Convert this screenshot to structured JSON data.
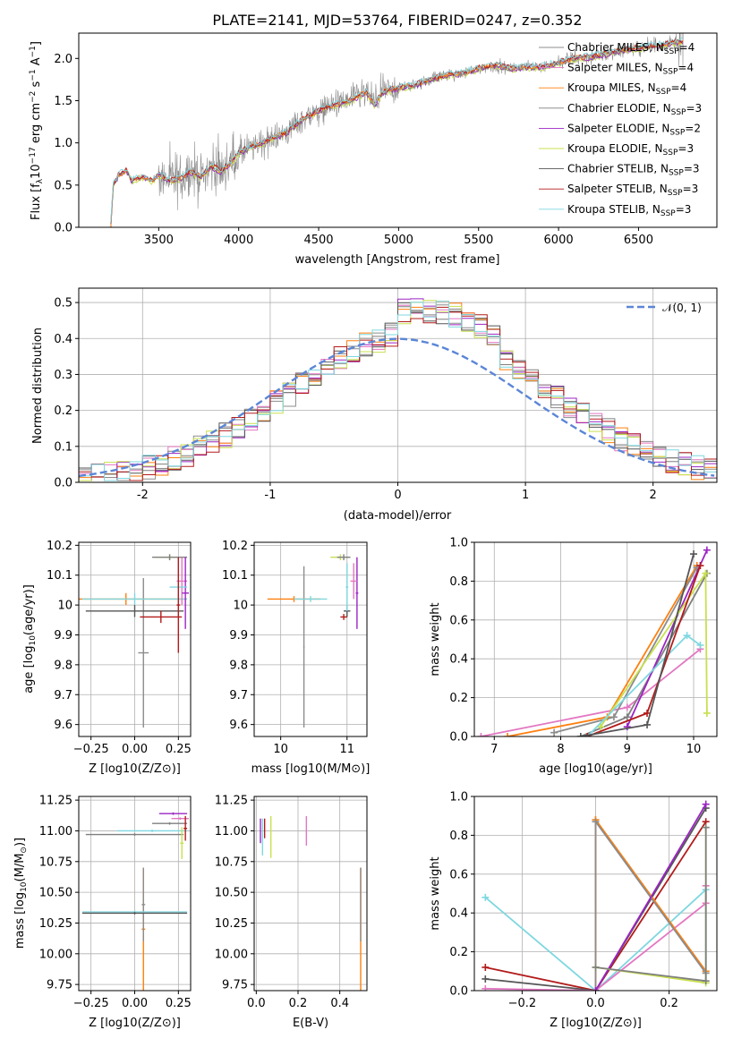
{
  "colors": {
    "chabrier_miles": "#8c8c8c",
    "salpeter_miles": "#e377c2",
    "kroupa_miles": "#ff7f0e",
    "chabrier_elodie": "#7f7f7f",
    "salpeter_elodie": "#9b24c4",
    "kroupa_elodie": "#c7e04f",
    "chabrier_stelib": "#555555",
    "salpeter_stelib": "#b31b1b",
    "kroupa_stelib": "#7fd7e0",
    "gauss": "#5b86d6"
  },
  "chart_data": [
    {
      "name": "spectrum",
      "type": "line",
      "title": "PLATE=2141, MJD=53764, FIBERID=0247, z=0.352",
      "xlabel": "wavelength [Angstrom, rest frame]",
      "ylabel": "Flux [f_λ10^-17 erg cm^-2 s^-1 A^-1]",
      "xlim": [
        3000,
        6990
      ],
      "ylim": [
        0,
        2.3
      ],
      "xticks": [
        3500,
        4000,
        4500,
        5000,
        5500,
        6000,
        6500
      ],
      "yticks": [
        0.0,
        0.5,
        1.0,
        1.5,
        2.0
      ],
      "legend_position": "top-right",
      "legend": [
        {
          "key": "chabrier_miles",
          "label": "Chabrier MILES, N_SSP=4"
        },
        {
          "key": "salpeter_miles",
          "label": "Salpeter MILES, N_SSP=4"
        },
        {
          "key": "kroupa_miles",
          "label": "Kroupa MILES, N_SSP=4"
        },
        {
          "key": "chabrier_elodie",
          "label": "Chabrier ELODIE, N_SSP=3"
        },
        {
          "key": "salpeter_elodie",
          "label": "Salpeter ELODIE, N_SSP=2"
        },
        {
          "key": "kroupa_elodie",
          "label": "Kroupa ELODIE, N_SSP=3"
        },
        {
          "key": "chabrier_stelib",
          "label": "Chabrier STELIB, N_SSP=3"
        },
        {
          "key": "salpeter_stelib",
          "label": "Salpeter STELIB, N_SSP=3"
        },
        {
          "key": "kroupa_stelib",
          "label": "Kroupa STELIB, N_SSP=3"
        }
      ],
      "model_envelope": {
        "x": [
          3200,
          3215,
          3250,
          3300,
          3330,
          3400,
          3460,
          3500,
          3580,
          3640,
          3700,
          3760,
          3830,
          3890,
          3960,
          4000,
          4080,
          4150,
          4200,
          4300,
          4400,
          4500,
          4600,
          4700,
          4800,
          4850,
          4900,
          5000,
          5100,
          5200,
          5300,
          5400,
          5500,
          5600,
          5700,
          5800,
          5900,
          6000,
          6100,
          6200,
          6300,
          6400,
          6500,
          6600,
          6700,
          6780
        ],
        "y": [
          0.0,
          0.5,
          0.62,
          0.67,
          0.55,
          0.6,
          0.55,
          0.62,
          0.55,
          0.58,
          0.66,
          0.6,
          0.72,
          0.66,
          0.78,
          0.88,
          0.95,
          1.0,
          1.05,
          1.12,
          1.28,
          1.38,
          1.45,
          1.5,
          1.6,
          1.45,
          1.6,
          1.65,
          1.68,
          1.75,
          1.8,
          1.82,
          1.88,
          1.92,
          1.88,
          1.9,
          1.9,
          1.95,
          2.0,
          2.02,
          2.05,
          2.1,
          2.12,
          2.15,
          2.18,
          2.2
        ]
      }
    },
    {
      "name": "residual-histogram",
      "type": "histogram",
      "xlabel": "(data-model)/error",
      "ylabel": "Normed distribution",
      "xlim": [
        -2.5,
        2.5
      ],
      "ylim": [
        0,
        0.54
      ],
      "xticks": [
        -2,
        -1,
        0,
        1,
        2
      ],
      "yticks": [
        0.0,
        0.1,
        0.2,
        0.3,
        0.4,
        0.5
      ],
      "legend_position": "top-right",
      "legend": [
        {
          "key": "gauss",
          "label": "𝒩(0, 1)"
        }
      ],
      "bin_width": 0.1
    },
    {
      "name": "age-vs-metallicity",
      "type": "errorbar",
      "xlabel": "Z [log10(Z/Z⊙)]",
      "ylabel": "age [log10(age/yr)]",
      "xlim": [
        -0.32,
        0.32
      ],
      "ylim": [
        9.56,
        10.21
      ],
      "xticks": [
        -0.25,
        0.0,
        0.25
      ],
      "xticklabels": [
        "−0.25",
        "0.00",
        "0.25"
      ],
      "yticks": [
        9.6,
        9.7,
        9.8,
        9.9,
        10.0,
        10.1,
        10.2
      ],
      "points": [
        {
          "key": "chabrier_miles",
          "x": 0.05,
          "y": 9.84,
          "xerr": 0.03,
          "yerr": 0.25
        },
        {
          "key": "kroupa_miles",
          "x": -0.05,
          "y": 10.02,
          "xerr": 0.35,
          "yerr": 0.02
        },
        {
          "key": "kroupa_stelib",
          "x": 0.0,
          "y": 10.02,
          "xerr": 0.3,
          "yerr": 0.02
        },
        {
          "key": "chabrier_stelib",
          "x": 0.0,
          "y": 9.98,
          "xerr": 0.28,
          "yerr": 0.02
        },
        {
          "key": "salpeter_stelib",
          "x": 0.15,
          "y": 9.96,
          "xerr": 0.12,
          "yerr": 0.02
        },
        {
          "key": "kroupa_elodie",
          "x": 0.2,
          "y": 10.16,
          "xerr": 0.08,
          "yerr": 0.01
        },
        {
          "key": "chabrier_elodie",
          "x": 0.2,
          "y": 10.16,
          "xerr": 0.1,
          "yerr": 0.01
        },
        {
          "key": "salpeter_miles",
          "x": 0.27,
          "y": 10.08,
          "xerr": 0.03,
          "yerr": 0.08
        },
        {
          "key": "salpeter_elodie",
          "x": 0.29,
          "y": 10.04,
          "xerr": 0.02,
          "yerr": 0.12
        },
        {
          "key": "kroupa_stelib",
          "x": 0.25,
          "y": 10.06,
          "xerr": 0.05,
          "yerr": 0.1
        },
        {
          "key": "salpeter_stelib",
          "x": 0.25,
          "y": 10.0,
          "xerr": 0.01,
          "yerr": 0.16
        }
      ]
    },
    {
      "name": "age-vs-mass",
      "type": "errorbar",
      "xlabel": "mass [log10(M/M⊙)]",
      "ylabel": "",
      "xlim": [
        9.6,
        11.3
      ],
      "ylim": [
        9.56,
        10.21
      ],
      "xticks": [
        10,
        11
      ],
      "yticks": [
        9.6,
        9.7,
        9.8,
        9.9,
        10.0,
        10.1,
        10.2
      ],
      "points": [
        {
          "key": "kroupa_miles",
          "x": 10.2,
          "y": 10.02,
          "xerr": 0.4,
          "yerr": 0.01
        },
        {
          "key": "chabrier_miles",
          "x": 10.35,
          "y": 9.86,
          "xerr": 0.01,
          "yerr": 0.27
        },
        {
          "key": "kroupa_stelib",
          "x": 10.45,
          "y": 10.02,
          "xerr": 0.25,
          "yerr": 0.01
        },
        {
          "key": "kroupa_elodie",
          "x": 10.9,
          "y": 10.16,
          "xerr": 0.15,
          "yerr": 0.01
        },
        {
          "key": "chabrier_elodie",
          "x": 10.95,
          "y": 10.16,
          "xerr": 0.1,
          "yerr": 0.01
        },
        {
          "key": "salpeter_elodie",
          "x": 11.15,
          "y": 10.04,
          "xerr": 0.02,
          "yerr": 0.12
        },
        {
          "key": "salpeter_miles",
          "x": 11.1,
          "y": 10.08,
          "xerr": 0.05,
          "yerr": 0.06
        },
        {
          "key": "chabrier_stelib",
          "x": 11.0,
          "y": 9.98,
          "xerr": 0.05,
          "yerr": 0.02
        },
        {
          "key": "salpeter_stelib",
          "x": 10.95,
          "y": 9.96,
          "xerr": 0.05,
          "yerr": 0.01
        },
        {
          "key": "kroupa_stelib",
          "x": 11.0,
          "y": 10.06,
          "xerr": 0.02,
          "yerr": 0.08
        }
      ]
    },
    {
      "name": "mass-weight-vs-age",
      "type": "line",
      "xlabel": "age [log10(age/yr)]",
      "ylabel": "mass weight",
      "xlim": [
        6.7,
        10.35
      ],
      "ylim": [
        0,
        1.0
      ],
      "xticks": [
        7,
        8,
        9,
        10
      ],
      "yticks": [
        0.0,
        0.2,
        0.4,
        0.6,
        0.8,
        1.0
      ],
      "series": [
        {
          "key": "salpeter_miles",
          "x": [
            6.8,
            9.0,
            10.1
          ],
          "y": [
            0.0,
            0.15,
            0.45
          ]
        },
        {
          "key": "kroupa_miles",
          "x": [
            7.2,
            8.7,
            10.05
          ],
          "y": [
            0.0,
            0.1,
            0.88
          ]
        },
        {
          "key": "chabrier_miles",
          "x": [
            7.9,
            8.8,
            10.05
          ],
          "y": [
            0.02,
            0.1,
            0.87
          ]
        },
        {
          "key": "chabrier_elodie",
          "x": [
            8.3,
            9.0,
            10.2
          ],
          "y": [
            0.0,
            0.1,
            0.84
          ]
        },
        {
          "key": "salpeter_elodie",
          "x": [
            9.0,
            10.2
          ],
          "y": [
            0.05,
            0.96
          ]
        },
        {
          "key": "kroupa_elodie",
          "x": [
            8.6,
            10.18,
            10.2
          ],
          "y": [
            0.05,
            0.84,
            0.12
          ]
        },
        {
          "key": "kroupa_stelib",
          "x": [
            8.4,
            9.9,
            10.1
          ],
          "y": [
            0.0,
            0.52,
            0.47
          ]
        },
        {
          "key": "salpeter_stelib",
          "x": [
            8.4,
            9.3,
            10.1
          ],
          "y": [
            0.0,
            0.12,
            0.88
          ]
        },
        {
          "key": "chabrier_stelib",
          "x": [
            8.3,
            9.3,
            10.0
          ],
          "y": [
            0.0,
            0.06,
            0.94
          ]
        }
      ]
    },
    {
      "name": "mass-vs-metallicity",
      "type": "errorbar",
      "xlabel": "Z [log10(Z/Z⊙)]",
      "ylabel": "mass [log10(M/M⊙)]",
      "xlim": [
        -0.32,
        0.32
      ],
      "ylim": [
        9.7,
        11.28
      ],
      "xticks": [
        -0.25,
        0.0,
        0.25
      ],
      "xticklabels": [
        "−0.25",
        "0.00",
        "0.25"
      ],
      "yticks": [
        9.75,
        10.0,
        10.25,
        10.5,
        10.75,
        11.0,
        11.25
      ],
      "yticklabels": [
        "9.75",
        "10.00",
        "10.25",
        "10.50",
        "10.75",
        "11.00",
        "11.25"
      ],
      "points": [
        {
          "key": "kroupa_miles",
          "x": 0.05,
          "y": 10.2,
          "xerr": 0.01,
          "yerr": 0.5
        },
        {
          "key": "chabrier_miles",
          "x": 0.05,
          "y": 10.4,
          "xerr": 0.01,
          "yerr": 0.3
        },
        {
          "key": "kroupa_stelib",
          "x": 0.0,
          "y": 10.34,
          "xerr": 0.3,
          "yerr": 0.01
        },
        {
          "key": "chabrier_stelib",
          "x": 0.0,
          "y": 10.33,
          "xerr": 0.3,
          "yerr": 0.01
        },
        {
          "key": "chabrier_elodie",
          "x": 0.0,
          "y": 10.97,
          "xerr": 0.28,
          "yerr": 0.01
        },
        {
          "key": "kroupa_stelib",
          "x": 0.1,
          "y": 11.0,
          "xerr": 0.2,
          "yerr": 0.01
        },
        {
          "key": "chabrier_elodie",
          "x": 0.2,
          "y": 11.06,
          "xerr": 0.1,
          "yerr": 0.01
        },
        {
          "key": "salpeter_elodie",
          "x": 0.22,
          "y": 11.14,
          "xerr": 0.08,
          "yerr": 0.01
        },
        {
          "key": "salpeter_miles",
          "x": 0.26,
          "y": 11.1,
          "xerr": 0.05,
          "yerr": 0.01
        },
        {
          "key": "kroupa_elodie",
          "x": 0.27,
          "y": 10.9,
          "xerr": 0.01,
          "yerr": 0.13
        },
        {
          "key": "salpeter_stelib",
          "x": 0.29,
          "y": 11.02,
          "xerr": 0.01,
          "yerr": 0.1
        }
      ]
    },
    {
      "name": "mass-vs-extinction",
      "type": "errorbar",
      "xlabel": "E(B-V)",
      "ylabel": "",
      "xlim": [
        -0.01,
        0.53
      ],
      "ylim": [
        9.7,
        11.28
      ],
      "xticks": [
        0.0,
        0.2,
        0.4
      ],
      "xticklabels": [
        "0.0",
        "0.2",
        "0.4"
      ],
      "yticks": [
        9.75,
        10.0,
        10.25,
        10.5,
        10.75,
        11.0,
        11.25
      ],
      "yticklabels": [
        "9.75",
        "10.00",
        "10.25",
        "10.50",
        "10.75",
        "11.00",
        "11.25"
      ],
      "points": [
        {
          "key": "salpeter_elodie",
          "x": 0.02,
          "y": 11.0,
          "xerr": 0.0,
          "yerr": 0.1
        },
        {
          "key": "kroupa_stelib",
          "x": 0.03,
          "y": 10.95,
          "xerr": 0.0,
          "yerr": 0.15
        },
        {
          "key": "salpeter_stelib",
          "x": 0.04,
          "y": 11.02,
          "xerr": 0.0,
          "yerr": 0.08
        },
        {
          "key": "kroupa_elodie",
          "x": 0.07,
          "y": 10.95,
          "xerr": 0.0,
          "yerr": 0.17
        },
        {
          "key": "salpeter_miles",
          "x": 0.24,
          "y": 11.0,
          "xerr": 0.0,
          "yerr": 0.12
        },
        {
          "key": "kroupa_miles",
          "x": 0.5,
          "y": 10.2,
          "xerr": 0.0,
          "yerr": 0.5
        },
        {
          "key": "chabrier_miles",
          "x": 0.5,
          "y": 10.4,
          "xerr": 0.0,
          "yerr": 0.3
        }
      ]
    },
    {
      "name": "mass-weight-vs-metallicity",
      "type": "line",
      "xlabel": "Z [log10(Z/Z⊙)]",
      "ylabel": "mass weight",
      "xlim": [
        -0.33,
        0.33
      ],
      "ylim": [
        0,
        1.0
      ],
      "xticks": [
        -0.2,
        0.0,
        0.2
      ],
      "xticklabels": [
        "−0.2",
        "0.0",
        "0.2"
      ],
      "yticks": [
        0.0,
        0.2,
        0.4,
        0.6,
        0.8,
        1.0
      ],
      "series": [
        {
          "key": "kroupa_stelib",
          "x": [
            -0.3,
            0.0,
            0.3,
            0.3
          ],
          "y": [
            0.48,
            0.0,
            0.52,
            0.04
          ]
        },
        {
          "key": "salpeter_stelib",
          "x": [
            -0.3,
            0.0,
            0.3
          ],
          "y": [
            0.12,
            0.0,
            0.87
          ]
        },
        {
          "key": "chabrier_stelib",
          "x": [
            -0.3,
            0.0,
            0.3
          ],
          "y": [
            0.06,
            0.0,
            0.94
          ]
        },
        {
          "key": "salpeter_miles",
          "x": [
            -0.3,
            0.0,
            0.3,
            0.3
          ],
          "y": [
            0.01,
            0.0,
            0.45,
            0.54
          ]
        },
        {
          "key": "kroupa_miles",
          "x": [
            0.0,
            0.0,
            0.3
          ],
          "y": [
            0.0,
            0.88,
            0.1
          ]
        },
        {
          "key": "chabrier_miles",
          "x": [
            0.0,
            0.0,
            0.3
          ],
          "y": [
            0.0,
            0.87,
            0.09
          ]
        },
        {
          "key": "salpeter_elodie",
          "x": [
            0.0,
            0.3
          ],
          "y": [
            0.0,
            0.96
          ]
        },
        {
          "key": "kroupa_elodie",
          "x": [
            0.0,
            0.3,
            0.3
          ],
          "y": [
            0.12,
            0.04,
            0.84
          ]
        },
        {
          "key": "chabrier_elodie",
          "x": [
            0.0,
            0.3,
            0.3
          ],
          "y": [
            0.12,
            0.05,
            0.84
          ]
        }
      ]
    }
  ]
}
